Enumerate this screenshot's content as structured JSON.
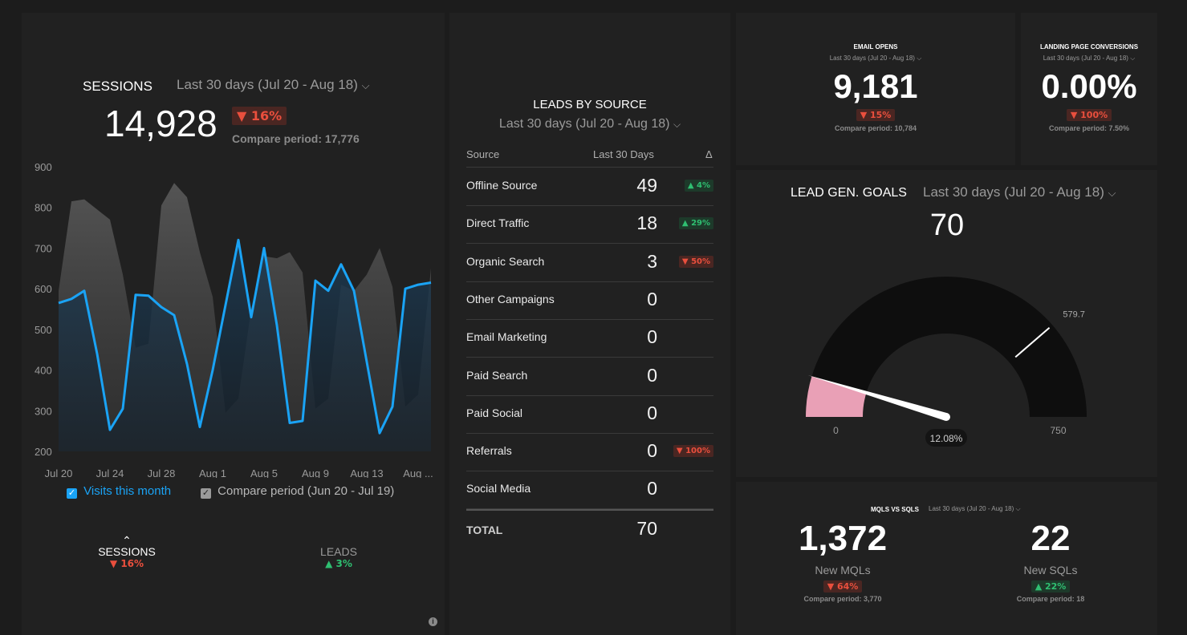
{
  "sessions": {
    "title": "SESSIONS",
    "period": "Last 30 days (Jul 20 - Aug 18)",
    "value": "14,928",
    "change": "▼ 16%",
    "compare": "Compare period: 17,776",
    "legend_current": "Visits this month",
    "legend_compare": "Compare period (Jun 20 - Jul 19)",
    "tabs": [
      {
        "label": "SESSIONS",
        "change": "▼ 16%"
      },
      {
        "label": "LEADS",
        "change": "▲ 3%"
      }
    ]
  },
  "chart_data": {
    "type": "area",
    "ylim": [
      200,
      900
    ],
    "y_ticks": [
      "900",
      "800",
      "700",
      "600",
      "500",
      "400",
      "300",
      "200"
    ],
    "x_ticks": [
      "Jul 20",
      "Jul 24",
      "Jul 28",
      "Aug 1",
      "Aug 5",
      "Aug 9",
      "Aug 13",
      "Aug ..."
    ],
    "series": [
      {
        "name": "Visits this month",
        "color": "#1aa3f5",
        "values": [
          565,
          575,
          595,
          440,
          253,
          305,
          585,
          583,
          555,
          535,
          415,
          260,
          400,
          560,
          720,
          530,
          700,
          510,
          270,
          275,
          620,
          595,
          660,
          595,
          420,
          245,
          310,
          600,
          610,
          615
        ]
      },
      {
        "name": "Compare period (Jun 20 - Jul 19)",
        "color": "#6a6a6a",
        "values": [
          595,
          815,
          820,
          795,
          770,
          635,
          455,
          465,
          805,
          860,
          825,
          690,
          580,
          295,
          330,
          550,
          680,
          675,
          690,
          640,
          305,
          330,
          610,
          595,
          635,
          700,
          605,
          310,
          340,
          650
        ]
      }
    ]
  },
  "leads": {
    "title": "LEADS BY SOURCE",
    "period": "Last 30 days (Jul 20 - Aug 18)",
    "headers": [
      "Source",
      "Last 30 Days",
      "Δ"
    ],
    "rows": [
      {
        "source": "Offline Source",
        "value": "49",
        "delta": "▲ 4%",
        "dir": "up"
      },
      {
        "source": "Direct Traffic",
        "value": "18",
        "delta": "▲ 29%",
        "dir": "up"
      },
      {
        "source": "Organic Search",
        "value": "3",
        "delta": "▼ 50%",
        "dir": "down"
      },
      {
        "source": "Other Campaigns",
        "value": "0",
        "delta": "",
        "dir": ""
      },
      {
        "source": "Email Marketing",
        "value": "0",
        "delta": "",
        "dir": ""
      },
      {
        "source": "Paid Search",
        "value": "0",
        "delta": "",
        "dir": ""
      },
      {
        "source": "Paid Social",
        "value": "0",
        "delta": "",
        "dir": ""
      },
      {
        "source": "Referrals",
        "value": "0",
        "delta": "▼ 100%",
        "dir": "down"
      },
      {
        "source": "Social Media",
        "value": "0",
        "delta": "",
        "dir": ""
      }
    ],
    "total_label": "TOTAL",
    "total_value": "70"
  },
  "email": {
    "title": "EMAIL OPENS",
    "period": "Last 30 days (Jul 20 - Aug 18)",
    "value": "9,181",
    "change": "▼ 15%",
    "compare": "Compare period: 10,784"
  },
  "landing": {
    "title": "LANDING PAGE CONVERSIONS",
    "period": "Last 30 days (Jul 20 - Aug 18)",
    "value": "0.00%",
    "change": "▼ 100%",
    "compare": "Compare period: 7.50%"
  },
  "goals": {
    "title": "LEAD GEN. GOALS",
    "period": "Last 30 days (Jul 20 - Aug 18)",
    "value": "70",
    "gauge_min": "0",
    "gauge_max": "750",
    "gauge_max_num": 750,
    "gauge_value_num": 70,
    "gauge_target": "579.7",
    "gauge_target_num": 579.7,
    "gauge_percent": "12.08%",
    "colors": {
      "fill": "#e9a0b6",
      "marker": "#ffffff"
    }
  },
  "mqls": {
    "title": "MQLS VS SQLS",
    "period": "Last 30 days (Jul 20 - Aug 18)",
    "mql_value": "1,372",
    "mql_label": "New MQLs",
    "mql_change": "▼ 64%",
    "mql_compare": "Compare period: 3,770",
    "sql_value": "22",
    "sql_label": "New SQLs",
    "sql_change": "▲ 22%",
    "sql_compare": "Compare period: 18"
  }
}
